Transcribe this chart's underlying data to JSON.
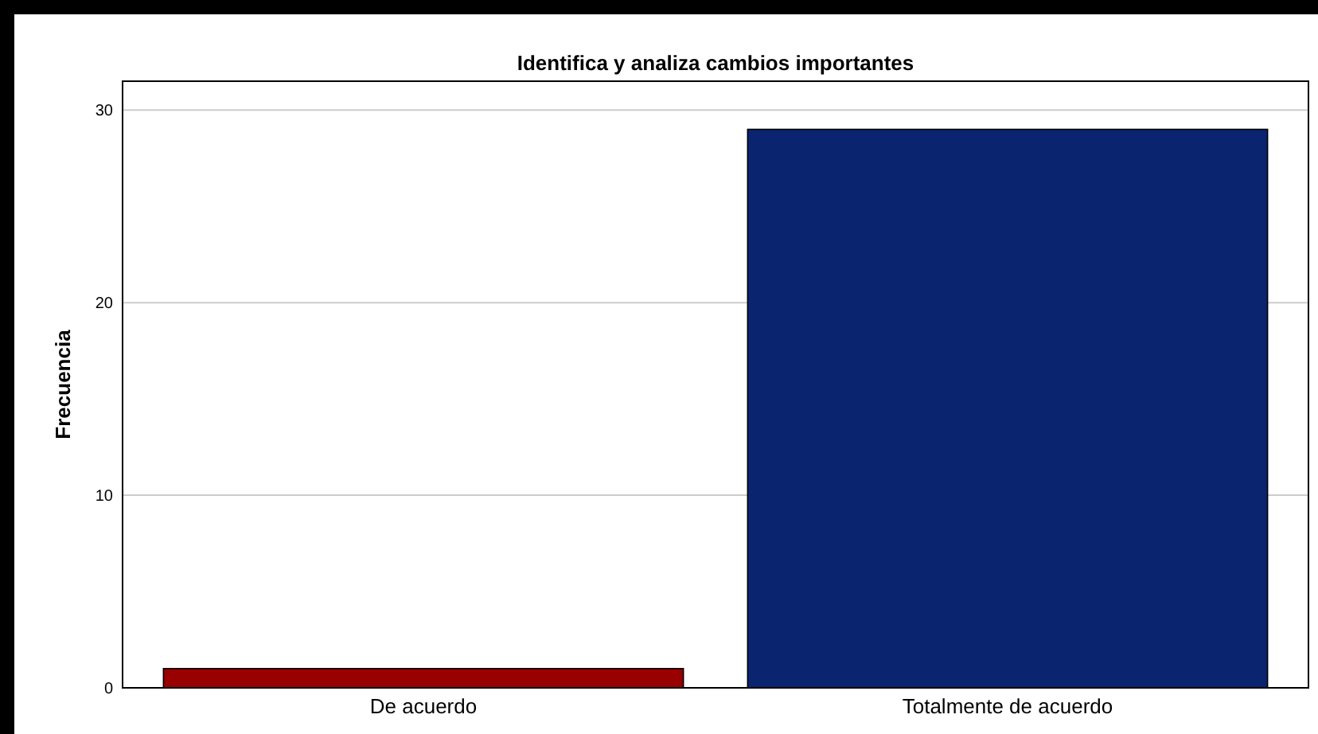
{
  "chart_data": {
    "type": "bar",
    "title": "Identifica y analiza cambios importantes",
    "ylabel": "Frecuencia",
    "categories": [
      "De acuerdo",
      "Totalmente de acuerdo"
    ],
    "values": [
      1,
      29
    ],
    "colors": [
      "#990000",
      "#0a2470"
    ],
    "ylim": [
      0,
      31.5
    ],
    "yticks": [
      0,
      10,
      20,
      30
    ],
    "grid": "y"
  }
}
